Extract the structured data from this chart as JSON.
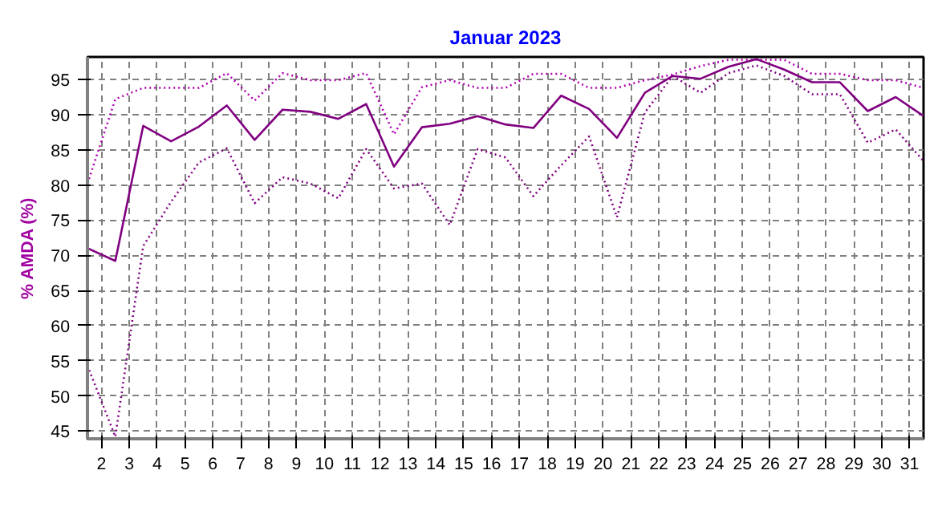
{
  "chart_data": {
    "type": "line",
    "title": "Januar 2023",
    "ylabel": "% AMDA (%)",
    "x": [
      1.5,
      2.5,
      3.5,
      4.5,
      5.5,
      6.5,
      7.5,
      8.5,
      9.5,
      10.5,
      11.5,
      12.5,
      13.5,
      14.5,
      15.5,
      16.5,
      17.5,
      18.5,
      19.5,
      20.5,
      21.5,
      22.5,
      23.5,
      24.5,
      25.5,
      26.5,
      27.5,
      28.5,
      29.5,
      30.5,
      31.5
    ],
    "series": [
      {
        "color": "#b000b0",
        "line_style": "dotted",
        "values": [
          80.2,
          92.2,
          93.8,
          93.8,
          93.8,
          95.9,
          92,
          95.9,
          94.9,
          94.9,
          95.9,
          87.2,
          93.9,
          94.9,
          93.8,
          93.8,
          95.8,
          95.8,
          93.8,
          93.8,
          94.9,
          95.7,
          96.9,
          97.8,
          97.8,
          97.8,
          95.8,
          95.8,
          94.9,
          94.9,
          93.8
        ]
      },
      {
        "color": "#800080",
        "line_style": "solid",
        "values": [
          71,
          69.2,
          88.4,
          86.2,
          88.3,
          91.3,
          86.4,
          90.7,
          90.4,
          89.4,
          91.5,
          82.6,
          88.2,
          88.7,
          89.8,
          88.6,
          88.1,
          92.7,
          90.8,
          86.7,
          93.1,
          95.5,
          95.1,
          96.8,
          97.9,
          96.4,
          94.6,
          94.6,
          90.5,
          92.5,
          89.8
        ]
      },
      {
        "color": "#800080",
        "line_style": "dotted",
        "values": [
          54.3,
          44.2,
          71.3,
          77.6,
          83.2,
          85.2,
          77.4,
          81.1,
          80.2,
          78.1,
          85.1,
          79.5,
          80.2,
          74.3,
          85.1,
          83.9,
          78.4,
          82.8,
          86.9,
          75.4,
          90.3,
          95.5,
          93.1,
          95.9,
          97,
          95.5,
          92.9,
          92.9,
          86,
          87.9,
          83.4
        ]
      }
    ],
    "xlim": [
      1.5,
      31.5
    ],
    "ylim": [
      43.9,
      98.2
    ],
    "xticks": [
      2,
      3,
      4,
      5,
      6,
      7,
      8,
      9,
      10,
      11,
      12,
      13,
      14,
      15,
      16,
      17,
      18,
      19,
      20,
      21,
      22,
      23,
      24,
      25,
      26,
      27,
      28,
      29,
      30,
      31
    ],
    "yticks": [
      45,
      50,
      55,
      60,
      65,
      70,
      75,
      80,
      85,
      90,
      95
    ],
    "grid": true,
    "marker": "none"
  }
}
